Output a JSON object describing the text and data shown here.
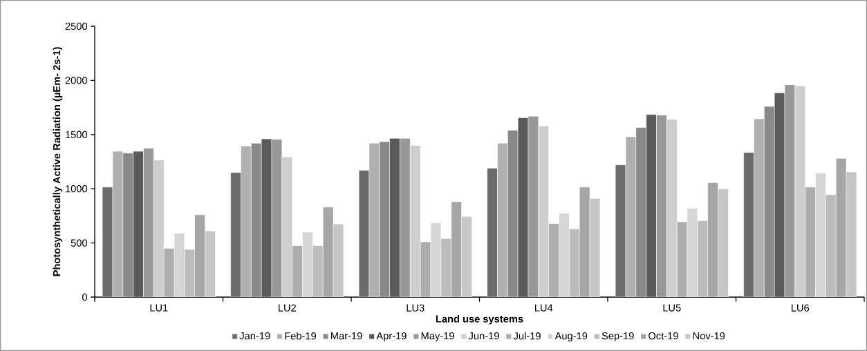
{
  "chart_data": {
    "type": "bar",
    "xlabel": "Land use systems",
    "ylabel": "Photosynthetically Active Radiation (µEm- 2s-1)",
    "categories": [
      "LU1",
      "LU2",
      "LU3",
      "LU4",
      "LU5",
      "LU6"
    ],
    "series": [
      {
        "name": "Jan-19",
        "color": "#6b6b6b",
        "values": [
          1015,
          1150,
          1170,
          1190,
          1220,
          1335
        ]
      },
      {
        "name": "Feb-19",
        "color": "#b0b0b0",
        "values": [
          1345,
          1395,
          1420,
          1420,
          1480,
          1645
        ]
      },
      {
        "name": "Mar-19",
        "color": "#898989",
        "values": [
          1330,
          1420,
          1435,
          1540,
          1565,
          1760
        ]
      },
      {
        "name": "Apr-19",
        "color": "#5a5a5a",
        "values": [
          1345,
          1460,
          1465,
          1655,
          1685,
          1885
        ]
      },
      {
        "name": "May-19",
        "color": "#989898",
        "values": [
          1375,
          1455,
          1465,
          1670,
          1680,
          1960
        ]
      },
      {
        "name": "Jun-19",
        "color": "#cecece",
        "values": [
          1265,
          1295,
          1400,
          1580,
          1640,
          1950
        ]
      },
      {
        "name": "Jul-19",
        "color": "#adadad",
        "values": [
          450,
          475,
          510,
          680,
          695,
          1015
        ]
      },
      {
        "name": "Aug-19",
        "color": "#d6d6d6",
        "values": [
          590,
          600,
          685,
          775,
          820,
          1145
        ]
      },
      {
        "name": "Sep-19",
        "color": "#bcbcbc",
        "values": [
          440,
          475,
          540,
          630,
          705,
          945
        ]
      },
      {
        "name": "Oct-19",
        "color": "#a6a6a6",
        "values": [
          760,
          830,
          880,
          1015,
          1055,
          1280
        ]
      },
      {
        "name": "Nov-19",
        "color": "#c6c6c6",
        "values": [
          610,
          675,
          745,
          910,
          1000,
          1155
        ]
      }
    ],
    "ylim": [
      0,
      2500
    ],
    "yticks": [
      0,
      500,
      1000,
      1500,
      2000,
      2500
    ],
    "grid": false,
    "legend": "bottom"
  }
}
